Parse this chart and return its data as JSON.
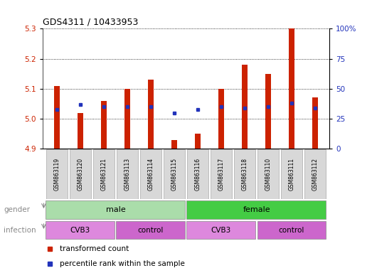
{
  "title": "GDS4311 / 10433953",
  "samples": [
    "GSM863119",
    "GSM863120",
    "GSM863121",
    "GSM863113",
    "GSM863114",
    "GSM863115",
    "GSM863116",
    "GSM863117",
    "GSM863118",
    "GSM863110",
    "GSM863111",
    "GSM863112"
  ],
  "transformed_count": [
    5.11,
    5.02,
    5.06,
    5.1,
    5.13,
    4.93,
    4.95,
    5.1,
    5.18,
    5.15,
    5.3,
    5.07
  ],
  "percentile_rank": [
    33,
    37,
    35,
    35,
    35,
    30,
    33,
    35,
    34,
    35,
    38,
    34
  ],
  "ylim_left": [
    4.9,
    5.3
  ],
  "ylim_right": [
    0,
    100
  ],
  "yticks_left": [
    4.9,
    5.0,
    5.1,
    5.2,
    5.3
  ],
  "yticks_right": [
    0,
    25,
    50,
    75,
    100
  ],
  "bar_color": "#cc2200",
  "dot_color": "#2233bb",
  "baseline": 4.9,
  "bar_width": 0.25,
  "gender_male_color": "#aaddaa",
  "gender_female_color": "#44cc44",
  "infection_cvb3_color": "#dd88dd",
  "infection_control_color": "#cc66cc",
  "legend_items": [
    {
      "label": "transformed count",
      "color": "#cc2200"
    },
    {
      "label": "percentile rank within the sample",
      "color": "#2233bb"
    }
  ]
}
